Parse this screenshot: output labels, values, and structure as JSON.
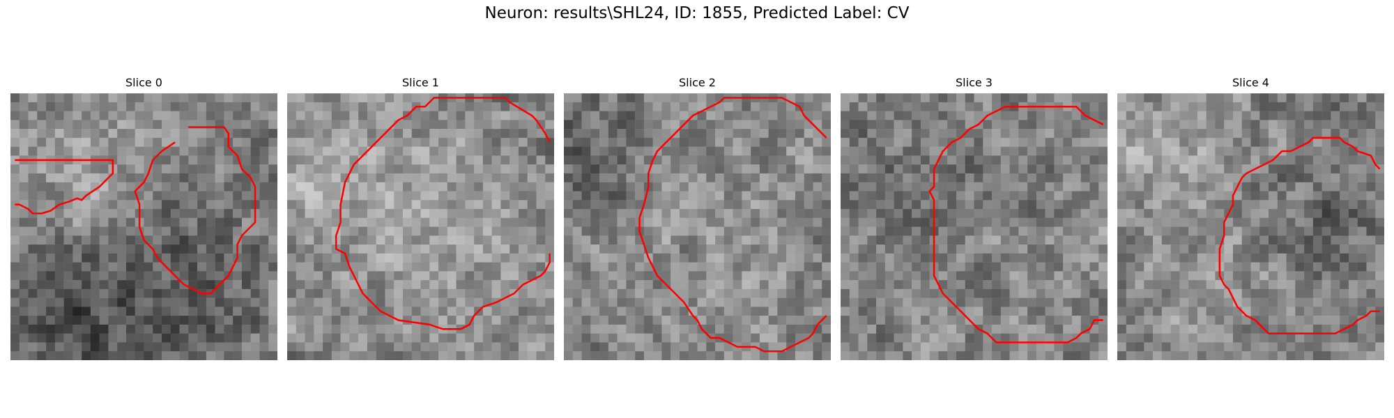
{
  "suptitle": "Neuron: results\\SHL24, ID: 1855, Predicted Label: CV",
  "panels": [
    {
      "title": "Slice 0",
      "seed": 11,
      "bias": [
        [
          0.25,
          0.25,
          0.25,
          0.15
        ],
        [
          0.7,
          0.7,
          0.3,
          -0.1
        ],
        [
          0.25,
          0.85,
          0.35,
          -0.18
        ]
      ],
      "contours": [
        [
          [
            0.5,
            7.5
          ],
          [
            11.5,
            7.5
          ],
          [
            11.5,
            9.0
          ],
          [
            10.0,
            10.5
          ],
          [
            8.5,
            11.5
          ],
          [
            8.0,
            12.0
          ],
          [
            7.5,
            11.8
          ],
          [
            6.5,
            12.2
          ],
          [
            5.5,
            12.5
          ],
          [
            4.5,
            13.2
          ],
          [
            3.5,
            13.5
          ],
          [
            2.5,
            13.5
          ],
          [
            2.0,
            13.0
          ],
          [
            1.0,
            12.5
          ],
          [
            0.5,
            12.5
          ]
        ],
        [
          [
            20.0,
            3.8
          ],
          [
            24.0,
            3.8
          ],
          [
            24.5,
            4.5
          ],
          [
            24.5,
            6.0
          ],
          [
            25.5,
            7.0
          ],
          [
            26.0,
            8.5
          ],
          [
            27.0,
            9.5
          ],
          [
            27.5,
            10.5
          ],
          [
            27.5,
            14.5
          ],
          [
            26.5,
            15.5
          ],
          [
            26.0,
            16.0
          ],
          [
            25.5,
            17.0
          ],
          [
            25.5,
            18.5
          ],
          [
            25.0,
            19.5
          ],
          [
            24.5,
            20.5
          ],
          [
            23.5,
            21.5
          ],
          [
            22.5,
            22.5
          ],
          [
            21.5,
            22.5
          ],
          [
            20.5,
            22.0
          ],
          [
            19.5,
            21.5
          ],
          [
            18.5,
            20.5
          ],
          [
            17.5,
            19.5
          ],
          [
            16.5,
            18.5
          ],
          [
            16.0,
            17.5
          ],
          [
            15.0,
            16.5
          ],
          [
            14.5,
            15.0
          ],
          [
            14.5,
            12.5
          ],
          [
            14.0,
            11.0
          ],
          [
            15.0,
            10.0
          ],
          [
            15.5,
            9.0
          ],
          [
            16.0,
            7.5
          ],
          [
            17.0,
            6.5
          ],
          [
            18.5,
            5.5
          ]
        ]
      ]
    },
    {
      "title": "Slice 1",
      "seed": 23,
      "bias": [
        [
          0.55,
          0.55,
          0.45,
          0.12
        ],
        [
          0.1,
          0.3,
          0.25,
          0.1
        ]
      ],
      "contours": [
        [
          [
            29.5,
            5.5
          ],
          [
            29.0,
            4.5
          ],
          [
            28.0,
            3.0
          ],
          [
            27.5,
            2.5
          ],
          [
            25.0,
            1.0
          ],
          [
            24.5,
            0.5
          ],
          [
            16.5,
            0.5
          ],
          [
            15.5,
            1.5
          ],
          [
            14.5,
            1.5
          ],
          [
            13.5,
            2.5
          ],
          [
            12.5,
            3.0
          ],
          [
            11.5,
            4.0
          ],
          [
            10.5,
            5.0
          ],
          [
            9.5,
            6.0
          ],
          [
            8.5,
            7.0
          ],
          [
            7.5,
            8.0
          ],
          [
            7.0,
            9.0
          ],
          [
            6.5,
            10.0
          ],
          [
            6.0,
            12.5
          ],
          [
            6.0,
            14.5
          ],
          [
            5.5,
            16.0
          ],
          [
            5.5,
            17.5
          ],
          [
            6.5,
            18.0
          ],
          [
            7.0,
            19.5
          ],
          [
            7.5,
            20.5
          ],
          [
            8.0,
            21.5
          ],
          [
            8.5,
            22.5
          ],
          [
            9.5,
            23.5
          ],
          [
            10.5,
            24.5
          ],
          [
            11.5,
            25.0
          ],
          [
            12.5,
            25.5
          ],
          [
            16.0,
            26.0
          ],
          [
            17.5,
            26.5
          ],
          [
            19.5,
            26.5
          ],
          [
            20.5,
            26.0
          ],
          [
            21.0,
            25.0
          ],
          [
            22.0,
            24.0
          ],
          [
            23.5,
            23.5
          ],
          [
            24.5,
            23.0
          ],
          [
            25.5,
            22.5
          ],
          [
            26.5,
            21.5
          ],
          [
            27.5,
            21.0
          ],
          [
            28.5,
            20.5
          ],
          [
            29.0,
            20.0
          ],
          [
            29.5,
            19.0
          ],
          [
            29.5,
            18.0
          ]
        ]
      ]
    },
    {
      "title": "Slice 2",
      "seed": 37,
      "bias": [
        [
          0.55,
          0.55,
          0.45,
          0.08
        ],
        [
          0.1,
          0.2,
          0.2,
          -0.12
        ]
      ],
      "contours": [
        [
          [
            29.5,
            5.0
          ],
          [
            28.5,
            4.0
          ],
          [
            27.0,
            2.5
          ],
          [
            26.5,
            1.5
          ],
          [
            25.5,
            1.0
          ],
          [
            24.5,
            0.5
          ],
          [
            18.0,
            0.5
          ],
          [
            17.5,
            1.0
          ],
          [
            16.5,
            1.5
          ],
          [
            15.5,
            2.0
          ],
          [
            14.5,
            2.5
          ],
          [
            13.5,
            3.5
          ],
          [
            12.5,
            4.5
          ],
          [
            11.5,
            5.5
          ],
          [
            10.5,
            6.5
          ],
          [
            10.0,
            7.5
          ],
          [
            9.5,
            9.0
          ],
          [
            9.5,
            10.5
          ],
          [
            9.0,
            12.5
          ],
          [
            8.5,
            14.0
          ],
          [
            8.5,
            15.5
          ],
          [
            9.0,
            17.0
          ],
          [
            9.5,
            18.5
          ],
          [
            10.0,
            19.5
          ],
          [
            10.5,
            20.5
          ],
          [
            11.5,
            21.5
          ],
          [
            12.5,
            22.5
          ],
          [
            13.5,
            23.5
          ],
          [
            14.5,
            25.0
          ],
          [
            15.0,
            25.5
          ],
          [
            15.5,
            26.5
          ],
          [
            16.5,
            27.5
          ],
          [
            17.5,
            27.5
          ],
          [
            18.5,
            28.0
          ],
          [
            19.5,
            28.5
          ],
          [
            21.5,
            28.5
          ],
          [
            22.5,
            29.0
          ],
          [
            24.5,
            29.0
          ],
          [
            25.5,
            28.5
          ],
          [
            26.5,
            28.0
          ],
          [
            27.5,
            27.5
          ],
          [
            28.0,
            27.0
          ],
          [
            28.5,
            26.0
          ],
          [
            29.5,
            25.0
          ]
        ]
      ]
    },
    {
      "title": "Slice 3",
      "seed": 51,
      "bias": [
        [
          0.55,
          0.6,
          0.45,
          0.06
        ],
        [
          0.35,
          0.35,
          0.25,
          -0.12
        ]
      ],
      "contours": [
        [
          [
            29.5,
            3.5
          ],
          [
            28.5,
            3.0
          ],
          [
            27.5,
            2.5
          ],
          [
            26.5,
            1.5
          ],
          [
            18.5,
            1.5
          ],
          [
            17.5,
            2.0
          ],
          [
            16.5,
            2.5
          ],
          [
            15.5,
            3.5
          ],
          [
            14.5,
            4.0
          ],
          [
            13.5,
            5.0
          ],
          [
            12.5,
            5.5
          ],
          [
            11.5,
            6.5
          ],
          [
            11.0,
            7.5
          ],
          [
            10.5,
            8.5
          ],
          [
            10.5,
            10.5
          ],
          [
            10.0,
            11.0
          ],
          [
            10.5,
            12.0
          ],
          [
            10.5,
            16.5
          ],
          [
            10.5,
            20.5
          ],
          [
            11.0,
            21.5
          ],
          [
            11.5,
            22.5
          ],
          [
            12.5,
            23.5
          ],
          [
            13.5,
            24.5
          ],
          [
            14.5,
            25.5
          ],
          [
            15.5,
            26.5
          ],
          [
            16.5,
            27.0
          ],
          [
            17.5,
            28.0
          ],
          [
            19.5,
            28.0
          ],
          [
            25.5,
            28.0
          ],
          [
            26.5,
            27.5
          ],
          [
            27.0,
            27.0
          ],
          [
            28.0,
            26.5
          ],
          [
            28.5,
            25.5
          ],
          [
            29.5,
            25.5
          ]
        ]
      ]
    },
    {
      "title": "Slice 4",
      "seed": 67,
      "bias": [
        [
          0.45,
          0.55,
          0.35,
          0.1
        ],
        [
          0.15,
          0.15,
          0.2,
          0.15
        ],
        [
          0.75,
          0.5,
          0.25,
          -0.15
        ]
      ],
      "contours": [
        [
          [
            29.5,
            8.5
          ],
          [
            29.0,
            8.0
          ],
          [
            28.5,
            7.0
          ],
          [
            27.0,
            6.5
          ],
          [
            26.5,
            6.0
          ],
          [
            25.5,
            5.5
          ],
          [
            25.0,
            5.0
          ],
          [
            24.5,
            5.0
          ],
          [
            23.0,
            5.0
          ],
          [
            22.0,
            5.0
          ],
          [
            21.5,
            5.5
          ],
          [
            20.5,
            6.0
          ],
          [
            19.5,
            6.5
          ],
          [
            18.5,
            6.5
          ],
          [
            17.5,
            7.5
          ],
          [
            16.5,
            8.0
          ],
          [
            15.5,
            8.5
          ],
          [
            14.5,
            9.0
          ],
          [
            14.0,
            9.5
          ],
          [
            13.5,
            10.5
          ],
          [
            13.0,
            11.5
          ],
          [
            13.0,
            12.5
          ],
          [
            12.5,
            13.5
          ],
          [
            12.0,
            14.5
          ],
          [
            12.0,
            16.0
          ],
          [
            11.5,
            17.5
          ],
          [
            11.5,
            19.0
          ],
          [
            11.5,
            20.5
          ],
          [
            12.0,
            21.5
          ],
          [
            12.5,
            22.0
          ],
          [
            13.0,
            23.0
          ],
          [
            13.5,
            24.0
          ],
          [
            14.5,
            25.0
          ],
          [
            15.5,
            25.5
          ],
          [
            16.0,
            26.0
          ],
          [
            17.0,
            27.0
          ],
          [
            19.0,
            27.0
          ],
          [
            24.5,
            27.0
          ],
          [
            25.5,
            26.5
          ],
          [
            26.5,
            26.0
          ],
          [
            27.0,
            25.5
          ],
          [
            28.0,
            25.0
          ],
          [
            28.5,
            24.5
          ],
          [
            29.5,
            24.5
          ]
        ]
      ]
    }
  ]
}
